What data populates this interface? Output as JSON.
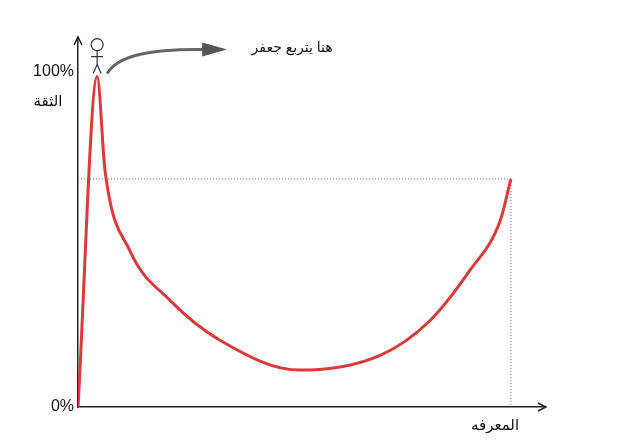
{
  "chart_data": {
    "type": "line",
    "x_label": "المعرفه",
    "y_label": "الثقة",
    "annotations": [
      "هنا يتربع جعفر"
    ],
    "x": [
      0,
      4.1,
      5.8,
      11.1,
      19.7,
      30.4,
      47.5,
      64.7,
      75.4,
      83.9,
      90.4,
      92.7
    ],
    "values": [
      0,
      98.5,
      70.3,
      46.6,
      31.8,
      19.9,
      11,
      15.4,
      25.8,
      40.7,
      55.5,
      68
    ],
    "color": "#d93a3c",
    "xlim": [
      0,
      100
    ],
    "ylim": [
      0,
      110
    ],
    "yticks": [
      {
        "value": 0,
        "label": "0%"
      },
      {
        "value": 100,
        "label": "100%"
      }
    ],
    "grid": false,
    "tick_labels": "y"
  }
}
